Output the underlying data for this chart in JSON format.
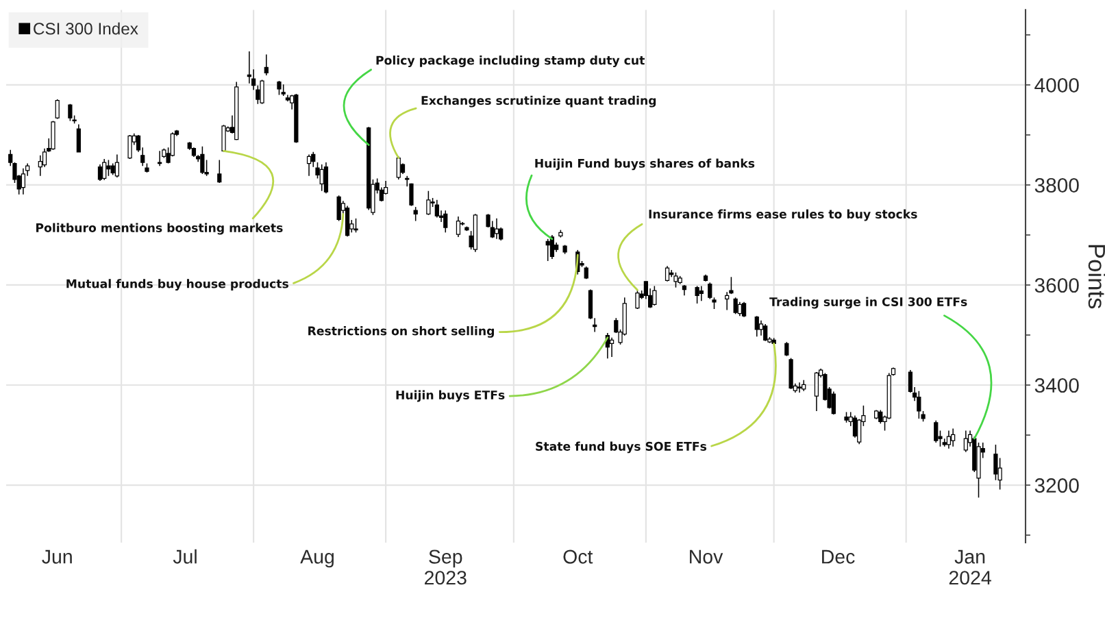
{
  "chart_data": {
    "type": "candlestick",
    "ylabel": "Points",
    "x": [
      "2023-06-05",
      "2023-06-06",
      "2023-06-07",
      "2023-06-08",
      "2023-06-09",
      "2023-06-12",
      "2023-06-13",
      "2023-06-14",
      "2023-06-15",
      "2023-06-16",
      "2023-06-19",
      "2023-06-20",
      "2023-06-21",
      "2023-06-26",
      "2023-06-27",
      "2023-06-28",
      "2023-06-29",
      "2023-06-30",
      "2023-07-03",
      "2023-07-04",
      "2023-07-05",
      "2023-07-06",
      "2023-07-07",
      "2023-07-10",
      "2023-07-11",
      "2023-07-12",
      "2023-07-13",
      "2023-07-14",
      "2023-07-17",
      "2023-07-18",
      "2023-07-19",
      "2023-07-20",
      "2023-07-21",
      "2023-07-24",
      "2023-07-25",
      "2023-07-26",
      "2023-07-27",
      "2023-07-28",
      "2023-07-31",
      "2023-08-01",
      "2023-08-02",
      "2023-08-03",
      "2023-08-04",
      "2023-08-07",
      "2023-08-08",
      "2023-08-09",
      "2023-08-10",
      "2023-08-11",
      "2023-08-14",
      "2023-08-15",
      "2023-08-16",
      "2023-08-17",
      "2023-08-18",
      "2023-08-21",
      "2023-08-22",
      "2023-08-23",
      "2023-08-24",
      "2023-08-25",
      "2023-08-28",
      "2023-08-29",
      "2023-08-30",
      "2023-08-31",
      "2023-09-01",
      "2023-09-04",
      "2023-09-05",
      "2023-09-06",
      "2023-09-07",
      "2023-09-08",
      "2023-09-11",
      "2023-09-12",
      "2023-09-13",
      "2023-09-14",
      "2023-09-15",
      "2023-09-18",
      "2023-09-19",
      "2023-09-20",
      "2023-09-21",
      "2023-09-22",
      "2023-09-25",
      "2023-09-26",
      "2023-09-27",
      "2023-09-28",
      "2023-10-09",
      "2023-10-10",
      "2023-10-11",
      "2023-10-12",
      "2023-10-13",
      "2023-10-16",
      "2023-10-17",
      "2023-10-18",
      "2023-10-19",
      "2023-10-20",
      "2023-10-23",
      "2023-10-24",
      "2023-10-25",
      "2023-10-26",
      "2023-10-27",
      "2023-10-30",
      "2023-10-31",
      "2023-11-01",
      "2023-11-02",
      "2023-11-03",
      "2023-11-06",
      "2023-11-07",
      "2023-11-08",
      "2023-11-09",
      "2023-11-10",
      "2023-11-13",
      "2023-11-14",
      "2023-11-15",
      "2023-11-16",
      "2023-11-17",
      "2023-11-20",
      "2023-11-21",
      "2023-11-22",
      "2023-11-23",
      "2023-11-24",
      "2023-11-27",
      "2023-11-28",
      "2023-11-29",
      "2023-11-30",
      "2023-12-01",
      "2023-12-04",
      "2023-12-05",
      "2023-12-06",
      "2023-12-07",
      "2023-12-08",
      "2023-12-11",
      "2023-12-12",
      "2023-12-13",
      "2023-12-14",
      "2023-12-15",
      "2023-12-18",
      "2023-12-19",
      "2023-12-20",
      "2023-12-21",
      "2023-12-22",
      "2023-12-25",
      "2023-12-26",
      "2023-12-27",
      "2023-12-28",
      "2023-12-29",
      "2024-01-02",
      "2024-01-03",
      "2024-01-04",
      "2024-01-05",
      "2024-01-08",
      "2024-01-09",
      "2024-01-10",
      "2024-01-11",
      "2024-01-12",
      "2024-01-15",
      "2024-01-16",
      "2024-01-17",
      "2024-01-18",
      "2024-01-19",
      "2024-01-22",
      "2024-01-23"
    ],
    "xlim": [
      "2023-06-04",
      "2024-01-29"
    ],
    "xticks": [
      {
        "value": "2023-06-16",
        "label": "Jun"
      },
      {
        "value": "2023-07-16",
        "label": "Jul"
      },
      {
        "value": "2023-08-16",
        "label": "Aug"
      },
      {
        "value": "2023-09-15",
        "label": "Sep\n2023"
      },
      {
        "value": "2023-10-16",
        "label": "Oct"
      },
      {
        "value": "2023-11-15",
        "label": "Nov"
      },
      {
        "value": "2023-12-16",
        "label": "Dec"
      },
      {
        "value": "2024-01-16",
        "label": "Jan\n2024"
      },
      {
        "value": "2023-07-01",
        "label": null
      },
      {
        "value": "2023-08-01",
        "label": null
      },
      {
        "value": "2023-09-01",
        "label": null
      },
      {
        "value": "2023-10-01",
        "label": null
      },
      {
        "value": "2023-11-01",
        "label": null
      },
      {
        "value": "2023-12-01",
        "label": null
      },
      {
        "value": "2024-01-01",
        "label": null
      }
    ],
    "ylim": [
      3085,
      4150
    ],
    "yticks": [
      3200,
      3400,
      3600,
      3800,
      4000,
      {
        "value": 3100,
        "label": null
      },
      {
        "value": 3300,
        "label": null
      },
      {
        "value": 3500,
        "label": null
      },
      {
        "value": 3700,
        "label": null
      },
      {
        "value": 3900,
        "label": null
      },
      {
        "value": 4100,
        "label": null
      }
    ],
    "grid": true,
    "legend": "top left",
    "series": [
      {
        "name": "CSI 300 Index",
        "color": "#000000",
        "ohlc": [
          [
            3861,
            3870,
            3838,
            3845
          ],
          [
            3843,
            3845,
            3804,
            3811
          ],
          [
            3818,
            3820,
            3781,
            3792
          ],
          [
            3795,
            3833,
            3781,
            3822
          ],
          [
            3829,
            3843,
            3818,
            3838
          ],
          [
            3836,
            3859,
            3818,
            3847
          ],
          [
            3840,
            3873,
            3836,
            3866
          ],
          [
            3873,
            3893,
            3866,
            3868
          ],
          [
            3872,
            3928,
            3870,
            3926
          ],
          [
            3934,
            3971,
            3932,
            3969
          ],
          [
            3960,
            3962,
            3928,
            3934
          ],
          [
            3928,
            3939,
            3923,
            3930
          ],
          [
            3912,
            3921,
            3866,
            3866
          ],
          [
            3836,
            3841,
            3808,
            3811
          ],
          [
            3813,
            3852,
            3810,
            3845
          ],
          [
            3838,
            3850,
            3818,
            3832
          ],
          [
            3838,
            3843,
            3820,
            3824
          ],
          [
            3818,
            3861,
            3815,
            3845
          ],
          [
            3854,
            3900,
            3852,
            3898
          ],
          [
            3886,
            3903,
            3880,
            3898
          ],
          [
            3898,
            3900,
            3866,
            3870
          ],
          [
            3859,
            3875,
            3838,
            3845
          ],
          [
            3834,
            3843,
            3825,
            3827
          ],
          [
            3845,
            3868,
            3838,
            3843
          ],
          [
            3857,
            3873,
            3854,
            3870
          ],
          [
            3863,
            3875,
            3843,
            3845
          ],
          [
            3859,
            3905,
            3857,
            3902
          ],
          [
            3908,
            3910,
            3898,
            3901
          ],
          [
            3884,
            3886,
            3870,
            3873
          ],
          [
            3873,
            3875,
            3856,
            3859
          ],
          [
            3857,
            3860,
            3846,
            3852
          ],
          [
            3861,
            3877,
            3822,
            3825
          ],
          [
            3825,
            3850,
            3818,
            3822
          ],
          [
            3822,
            3850,
            3804,
            3806
          ],
          [
            3868,
            3920,
            3866,
            3918
          ],
          [
            3908,
            3917,
            3906,
            3914
          ],
          [
            3915,
            3939,
            3903,
            3905
          ],
          [
            3891,
            4006,
            3890,
            3996
          ],
          [
            4020,
            4067,
            4003,
            4017
          ],
          [
            4012,
            4031,
            3990,
            3999
          ],
          [
            3990,
            3999,
            3962,
            3971
          ],
          [
            3964,
            4010,
            3962,
            4008
          ],
          [
            4035,
            4061,
            4019,
            4024
          ],
          [
            4006,
            4008,
            3980,
            3992
          ],
          [
            3985,
            4001,
            3978,
            3982
          ],
          [
            3974,
            3980,
            3967,
            3970
          ],
          [
            3964,
            3980,
            3951,
            3978
          ],
          [
            3980,
            3982,
            3884,
            3886
          ],
          [
            3843,
            3861,
            3818,
            3857
          ],
          [
            3861,
            3866,
            3836,
            3847
          ],
          [
            3834,
            3845,
            3813,
            3820
          ],
          [
            3802,
            3841,
            3788,
            3831
          ],
          [
            3836,
            3845,
            3783,
            3786
          ],
          [
            3776,
            3779,
            3728,
            3731
          ],
          [
            3749,
            3768,
            3742,
            3763
          ],
          [
            3754,
            3758,
            3697,
            3699
          ],
          [
            3712,
            3730,
            3705,
            3722
          ],
          [
            3712,
            3733,
            3705,
            3710
          ],
          [
            3914,
            3916,
            3750,
            3754
          ],
          [
            3745,
            3811,
            3740,
            3801
          ],
          [
            3804,
            3813,
            3783,
            3790
          ],
          [
            3790,
            3795,
            3767,
            3769
          ],
          [
            3783,
            3808,
            3781,
            3795
          ],
          [
            3815,
            3857,
            3811,
            3854
          ],
          [
            3841,
            3843,
            3822,
            3825
          ],
          [
            3813,
            3818,
            3797,
            3811
          ],
          [
            3802,
            3803,
            3758,
            3760
          ],
          [
            3749,
            3756,
            3728,
            3742
          ],
          [
            3742,
            3788,
            3740,
            3770
          ],
          [
            3766,
            3774,
            3756,
            3764
          ],
          [
            3760,
            3770,
            3735,
            3738
          ],
          [
            3738,
            3749,
            3726,
            3735
          ],
          [
            3742,
            3749,
            3705,
            3715
          ],
          [
            3701,
            3737,
            3696,
            3728
          ],
          [
            3723,
            3726,
            3719,
            3722
          ],
          [
            3715,
            3717,
            3708,
            3710
          ],
          [
            3698,
            3708,
            3671,
            3676
          ],
          [
            3671,
            3742,
            3666,
            3740
          ],
          [
            3740,
            3742,
            3715,
            3717
          ],
          [
            3715,
            3728,
            3694,
            3696
          ],
          [
            3703,
            3733,
            3692,
            3712
          ],
          [
            3712,
            3715,
            3689,
            3692
          ],
          [
            3687,
            3692,
            3648,
            3680
          ],
          [
            3696,
            3700,
            3652,
            3657
          ],
          [
            3680,
            3685,
            3666,
            3671
          ],
          [
            3698,
            3710,
            3695,
            3705
          ],
          [
            3678,
            3680,
            3662,
            3666
          ],
          [
            3666,
            3670,
            3621,
            3627
          ],
          [
            3643,
            3648,
            3636,
            3640
          ],
          [
            3634,
            3637,
            3612,
            3614
          ],
          [
            3589,
            3591,
            3532,
            3534
          ],
          [
            3520,
            3534,
            3506,
            3517
          ],
          [
            3499,
            3504,
            3453,
            3476
          ],
          [
            3483,
            3495,
            3456,
            3490
          ],
          [
            3529,
            3534,
            3504,
            3506
          ],
          [
            3485,
            3511,
            3481,
            3506
          ],
          [
            3502,
            3575,
            3499,
            3563
          ],
          [
            3554,
            3589,
            3552,
            3584
          ],
          [
            3582,
            3589,
            3572,
            3575
          ],
          [
            3607,
            3607,
            3572,
            3579
          ],
          [
            3579,
            3593,
            3554,
            3556
          ],
          [
            3561,
            3598,
            3559,
            3589
          ],
          [
            3609,
            3638,
            3607,
            3634
          ],
          [
            3624,
            3630,
            3616,
            3621
          ],
          [
            3607,
            3625,
            3595,
            3618
          ],
          [
            3605,
            3618,
            3602,
            3614
          ],
          [
            3598,
            3600,
            3579,
            3591
          ],
          [
            3595,
            3598,
            3563,
            3579
          ],
          [
            3588,
            3598,
            3568,
            3583
          ],
          [
            3618,
            3621,
            3607,
            3609
          ],
          [
            3602,
            3605,
            3572,
            3575
          ],
          [
            3570,
            3575,
            3552,
            3566
          ],
          [
            3572,
            3586,
            3550,
            3579
          ],
          [
            3589,
            3616,
            3582,
            3584
          ],
          [
            3572,
            3575,
            3542,
            3545
          ],
          [
            3543,
            3566,
            3538,
            3561
          ],
          [
            3563,
            3566,
            3536,
            3538
          ],
          [
            3536,
            3538,
            3497,
            3511
          ],
          [
            3511,
            3529,
            3499,
            3522
          ],
          [
            3518,
            3522,
            3488,
            3490
          ],
          [
            3486,
            3496,
            3484,
            3492
          ],
          [
            3490,
            3494,
            3480,
            3483
          ],
          [
            3483,
            3486,
            3458,
            3460
          ],
          [
            3451,
            3454,
            3392,
            3394
          ],
          [
            3389,
            3403,
            3385,
            3398
          ],
          [
            3396,
            3405,
            3385,
            3394
          ],
          [
            3392,
            3410,
            3388,
            3401
          ],
          [
            3378,
            3426,
            3348,
            3424
          ],
          [
            3419,
            3433,
            3415,
            3430
          ],
          [
            3421,
            3424,
            3369,
            3371
          ],
          [
            3392,
            3396,
            3353,
            3355
          ],
          [
            3382,
            3387,
            3341,
            3343
          ],
          [
            3336,
            3346,
            3325,
            3330
          ],
          [
            3327,
            3346,
            3318,
            3336
          ],
          [
            3334,
            3339,
            3295,
            3298
          ],
          [
            3286,
            3332,
            3282,
            3330
          ],
          [
            3327,
            3359,
            3318,
            3339
          ],
          [
            3334,
            3350,
            3332,
            3348
          ],
          [
            3346,
            3350,
            3323,
            3327
          ],
          [
            3327,
            3339,
            3309,
            3336
          ],
          [
            3334,
            3424,
            3332,
            3419
          ],
          [
            3421,
            3435,
            3419,
            3433
          ],
          [
            3426,
            3430,
            3385,
            3387
          ],
          [
            3384,
            3396,
            3368,
            3376
          ],
          [
            3376,
            3388,
            3333,
            3348
          ],
          [
            3341,
            3348,
            3327,
            3333
          ],
          [
            3325,
            3329,
            3285,
            3289
          ],
          [
            3297,
            3309,
            3277,
            3293
          ],
          [
            3285,
            3293,
            3277,
            3281
          ],
          [
            3281,
            3309,
            3273,
            3297
          ],
          [
            3289,
            3313,
            3277,
            3301
          ],
          [
            3270,
            3309,
            3266,
            3293
          ],
          [
            3285,
            3309,
            3277,
            3301
          ],
          [
            3293,
            3297,
            3226,
            3230
          ],
          [
            3214,
            3285,
            3175,
            3277
          ],
          [
            3273,
            3285,
            3254,
            3266
          ],
          [
            3262,
            3281,
            3210,
            3222
          ],
          [
            3210,
            3254,
            3191,
            3234
          ]
        ]
      }
    ],
    "annotations": [
      {
        "text": "Politburo mentions boosting markets",
        "x": "2023-07-25",
        "y": 3868
      },
      {
        "text": "Mutual funds buy house products",
        "x": "2023-08-22",
        "y": 3742
      },
      {
        "text": "Policy package including stamp duty cut",
        "x": "2023-08-28",
        "y": 3880
      },
      {
        "text": "Exchanges scrutinize quant trading",
        "x": "2023-09-04",
        "y": 3854
      },
      {
        "text": "Huijin Fund buys shares of banks",
        "x": "2023-10-10",
        "y": 3692
      },
      {
        "text": "Insurance firms ease rules to buy stocks",
        "x": "2023-10-30",
        "y": 3590
      },
      {
        "text": "Restrictions on short selling",
        "x": "2023-10-16",
        "y": 3660
      },
      {
        "text": "Huijin buys ETFs",
        "x": "2023-10-23",
        "y": 3495
      },
      {
        "text": "State fund buys SOE ETFs",
        "x": "2023-12-01",
        "y": 3483
      },
      {
        "text": "Trading surge in CSI 300 ETFs",
        "x": "2024-01-17",
        "y": 3293
      }
    ]
  }
}
